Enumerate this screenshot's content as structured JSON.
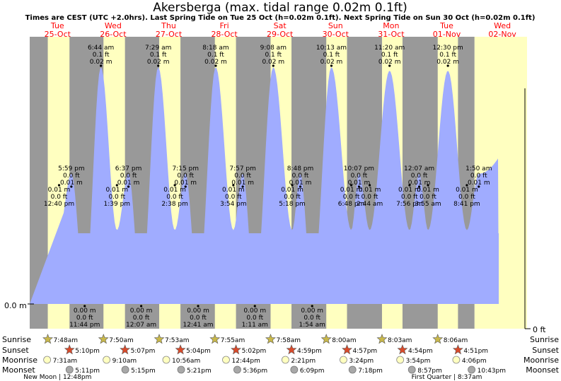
{
  "chart_data": {
    "type": "area",
    "title": "Akersberga (max. tidal range 0.02m 0.1ft)",
    "subtitle": "Times are CEST (UTC +2.0hrs). Last Spring Tide on Tue 25 Oct (h=0.02m 0.1ft). Next Spring Tide on Sun 30 Oct (h=0.02m 0.1ft)",
    "y_axis_left_label": "0.0 m",
    "y_axis_right_label": "0 ft",
    "days": [
      {
        "dow": "Tue",
        "date": "25-Oct"
      },
      {
        "dow": "Wed",
        "date": "26-Oct"
      },
      {
        "dow": "Thu",
        "date": "27-Oct"
      },
      {
        "dow": "Fri",
        "date": "28-Oct"
      },
      {
        "dow": "Sat",
        "date": "29-Oct"
      },
      {
        "dow": "Sun",
        "date": "30-Oct"
      },
      {
        "dow": "Mon",
        "date": "31-Oct"
      },
      {
        "dow": "Tue",
        "date": "01-Nov"
      },
      {
        "dow": "Wed",
        "date": "02-Nov"
      }
    ],
    "tides": [
      {
        "day": 0,
        "time": "12:40 pm",
        "hour": 12.67,
        "type": "low",
        "m": "0.01 m",
        "ft": "0.0 ft"
      },
      {
        "day": 0,
        "time": "5:59 pm",
        "hour": 17.98,
        "type": "high",
        "m": "0.01 m",
        "ft": "0.0 ft"
      },
      {
        "day": 0,
        "time": "11:44 pm",
        "hour": 23.73,
        "type": "low",
        "m": "0.00 m",
        "ft": "0.0 ft"
      },
      {
        "day": 1,
        "time": "6:44 am",
        "hour": 6.73,
        "type": "high",
        "m": "0.02 m",
        "ft": "0.1 ft"
      },
      {
        "day": 1,
        "time": "1:39 pm",
        "hour": 13.65,
        "type": "low",
        "m": "0.01 m",
        "ft": "0.0 ft"
      },
      {
        "day": 1,
        "time": "6:37 pm",
        "hour": 18.62,
        "type": "high",
        "m": "0.01 m",
        "ft": "0.0 ft"
      },
      {
        "day": 2,
        "time": "12:07 am",
        "hour": 0.12,
        "type": "low",
        "m": "0.00 m",
        "ft": "0.0 ft"
      },
      {
        "day": 2,
        "time": "7:29 am",
        "hour": 7.48,
        "type": "high",
        "m": "0.02 m",
        "ft": "0.1 ft"
      },
      {
        "day": 2,
        "time": "2:38 pm",
        "hour": 14.63,
        "type": "low",
        "m": "0.01 m",
        "ft": "0.0 ft"
      },
      {
        "day": 2,
        "time": "7:15 pm",
        "hour": 19.25,
        "type": "high",
        "m": "0.01 m",
        "ft": "0.0 ft"
      },
      {
        "day": 3,
        "time": "12:41 am",
        "hour": 0.68,
        "type": "low",
        "m": "0.00 m",
        "ft": "0.0 ft"
      },
      {
        "day": 3,
        "time": "8:18 am",
        "hour": 8.3,
        "type": "high",
        "m": "0.02 m",
        "ft": "0.1 ft"
      },
      {
        "day": 3,
        "time": "3:54 pm",
        "hour": 15.9,
        "type": "low",
        "m": "0.01 m",
        "ft": "0.0 ft"
      },
      {
        "day": 3,
        "time": "7:57 pm",
        "hour": 19.95,
        "type": "high",
        "m": "0.01 m",
        "ft": "0.0 ft"
      },
      {
        "day": 4,
        "time": "1:11 am",
        "hour": 1.18,
        "type": "low",
        "m": "0.00 m",
        "ft": "0.0 ft"
      },
      {
        "day": 4,
        "time": "9:08 am",
        "hour": 9.13,
        "type": "high",
        "m": "0.02 m",
        "ft": "0.1 ft"
      },
      {
        "day": 4,
        "time": "5:18 pm",
        "hour": 17.3,
        "type": "low",
        "m": "0.01 m",
        "ft": "0.0 ft"
      },
      {
        "day": 4,
        "time": "8:48 pm",
        "hour": 20.8,
        "type": "high",
        "m": "0.01 m",
        "ft": "0.0 ft"
      },
      {
        "day": 5,
        "time": "1:54 am",
        "hour": 1.9,
        "type": "low",
        "m": "0.00 m",
        "ft": "0.0 ft"
      },
      {
        "day": 5,
        "time": "10:13 am",
        "hour": 10.22,
        "type": "high",
        "m": "0.02 m",
        "ft": "0.1 ft"
      },
      {
        "day": 5,
        "time": "6:48 pm",
        "hour": 18.8,
        "type": "low",
        "m": "0.01 m",
        "ft": "0.0 ft"
      },
      {
        "day": 5,
        "time": "10:07 pm",
        "hour": 22.12,
        "type": "high",
        "m": "0.01 m",
        "ft": "0.0 ft"
      },
      {
        "day": 6,
        "time": "2:44 am",
        "hour": 2.73,
        "type": "low",
        "m": "0.01 m",
        "ft": "0.0 ft"
      },
      {
        "day": 6,
        "time": "11:20 am",
        "hour": 11.33,
        "type": "high",
        "m": "0.02 m",
        "ft": "0.1 ft"
      },
      {
        "day": 6,
        "time": "7:56 pm",
        "hour": 19.93,
        "type": "low",
        "m": "0.01 m",
        "ft": "0.0 ft"
      },
      {
        "day": 7,
        "time": "3:55 am",
        "hour": 3.92,
        "type": "low",
        "m": "0.01 m",
        "ft": "0.0 ft"
      },
      {
        "day": 6,
        "time": "12:07 am",
        "hour": 24.12,
        "type": "high",
        "m": "0.01 m",
        "ft": "0.0 ft"
      },
      {
        "day": 7,
        "time": "12:30 pm",
        "hour": 12.5,
        "type": "high",
        "m": "0.02 m",
        "ft": "0.1 ft"
      },
      {
        "day": 7,
        "time": "8:41 pm",
        "hour": 20.68,
        "type": "low",
        "m": "0.01 m",
        "ft": "0.0 ft"
      },
      {
        "day": 8,
        "time": "1:50 am",
        "hour": 1.83,
        "type": "high",
        "m": "0.01 m",
        "ft": "0.0 ft"
      }
    ],
    "legend_labels": [
      "Sunrise",
      "Sunset",
      "Moonrise",
      "Moonset"
    ],
    "sunrise": [
      "7:48am",
      "7:50am",
      "7:53am",
      "7:55am",
      "7:58am",
      "8:00am",
      "8:03am",
      "8:06am"
    ],
    "sunset": [
      "5:10pm",
      "5:07pm",
      "5:04pm",
      "5:02pm",
      "4:59pm",
      "4:57pm",
      "4:54pm",
      "4:51pm"
    ],
    "moonrise": [
      "7:31am",
      "9:10am",
      "10:56am",
      "12:44pm",
      "2:21pm",
      "3:24pm",
      "3:54pm",
      "4:06pm"
    ],
    "moonset": [
      "5:11pm",
      "5:15pm",
      "5:21pm",
      "5:36pm",
      "6:09pm",
      "7:18pm",
      "8:57pm",
      "10:43pm"
    ],
    "moon_phases": [
      {
        "label": "New Moon | 12:48pm",
        "day": 0
      },
      {
        "label": "First Quarter | 8:37am",
        "day": 7
      }
    ],
    "colors": {
      "night": "#999999",
      "day": "#ffffc0",
      "water": "#a0acff",
      "day_label": "#ff0000",
      "sun_marker": "#c9b84a",
      "sunset_marker": "#d94a2a",
      "moonrise_marker": "#ffffc0",
      "moonset_marker": "#a8a8a8"
    }
  }
}
